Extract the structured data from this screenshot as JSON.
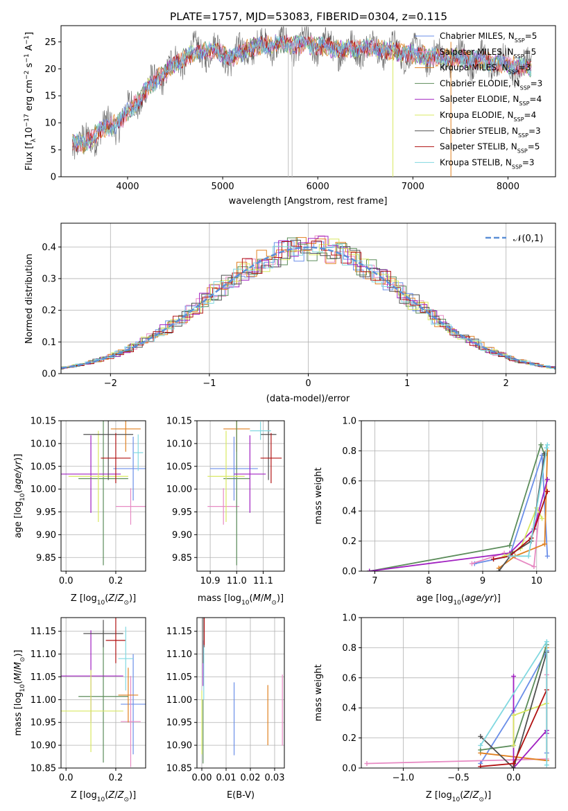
{
  "title": "PLATE=1757, MJD=53083, FIBERID=0304, z=0.115",
  "models": [
    {
      "name": "Chabrier MILES, N",
      "sub": "SSP",
      "suffix": "=5",
      "color": "#6a8ee8"
    },
    {
      "name": "Salpeter MILES, N",
      "sub": "SSP",
      "suffix": "=5",
      "color": "#e78ac3"
    },
    {
      "name": "Kroupa MILES, N",
      "sub": "SSP",
      "suffix": "=3",
      "color": "#e08020"
    },
    {
      "name": "Chabrier ELODIE, N",
      "sub": "SSP",
      "suffix": "=3",
      "color": "#5b8c5a"
    },
    {
      "name": "Salpeter ELODIE, N",
      "sub": "SSP",
      "suffix": "=4",
      "color": "#a020c0"
    },
    {
      "name": "Kroupa ELODIE, N",
      "sub": "SSP",
      "suffix": "=4",
      "color": "#d8e860"
    },
    {
      "name": "Chabrier STELIB, N",
      "sub": "SSP",
      "suffix": "=3",
      "color": "#505050"
    },
    {
      "name": "Salpeter STELIB, N",
      "sub": "SSP",
      "suffix": "=5",
      "color": "#b01010"
    },
    {
      "name": "Kroupa STELIB, N",
      "sub": "SSP",
      "suffix": "=3",
      "color": "#80d8e0"
    }
  ],
  "chart_data": [
    {
      "type": "line",
      "xlabel": "wavelength [Angstrom, rest frame]",
      "ylabel": "Flux [f",
      "xlim": [
        3300,
        8500
      ],
      "ylim": [
        0,
        28
      ],
      "xticks": [
        4000,
        5000,
        6000,
        7000,
        8000
      ],
      "yticks": [
        0,
        5,
        10,
        15,
        20,
        25
      ],
      "continuum": {
        "x": [
          3400,
          3550,
          3700,
          3900,
          4100,
          4300,
          4500,
          4700,
          4900,
          5100,
          5300,
          5500,
          5700,
          5900,
          6100,
          6300,
          6500,
          6700,
          6900,
          7100,
          7300,
          7500,
          7700,
          7900,
          8100,
          8250
        ],
        "y": [
          6.5,
          6,
          8.5,
          10,
          14,
          18,
          21,
          23,
          23.5,
          22,
          24,
          24.5,
          24.5,
          24.5,
          24,
          23.5,
          24,
          23.5,
          23,
          22.5,
          22,
          22,
          21.5,
          21,
          20.5,
          20
        ]
      },
      "grid": false,
      "legend": "top-right"
    },
    {
      "type": "step",
      "xlabel": "(data-model)/error",
      "ylabel": "Normed distribution",
      "xlim": [
        -2.5,
        2.5
      ],
      "ylim": [
        0,
        0.475
      ],
      "xticks": [
        -2,
        -1,
        0,
        1,
        2
      ],
      "yticks": [
        0,
        0.1,
        0.2,
        0.3,
        0.4
      ],
      "reference_label": "𝒩(0,1)",
      "grid": true,
      "legend": "top-right"
    },
    {
      "type": "scatter",
      "xlabel": "Z [log",
      "ylabel": "age  [log",
      "xlim": [
        -0.02,
        0.32
      ],
      "ylim": [
        9.82,
        10.15
      ],
      "xticks": [
        0.0,
        0.2
      ],
      "yticks": [
        9.85,
        9.9,
        9.95,
        10.0,
        10.05,
        10.1,
        10.15
      ],
      "points": [
        {
          "x": 0.27,
          "xerr": 0.08,
          "y": 10.045,
          "yerr": 0.07,
          "model": 0
        },
        {
          "x": 0.26,
          "xerr": 0.06,
          "y": 9.962,
          "yerr": 0.04,
          "model": 1
        },
        {
          "x": 0.24,
          "xerr": 0.06,
          "y": 10.132,
          "yerr": 0.05,
          "model": 2
        },
        {
          "x": 0.15,
          "xerr": 0.1,
          "y": 10.023,
          "yerr": 0.19,
          "model": 3
        },
        {
          "x": 0.1,
          "xerr": 0.12,
          "y": 10.033,
          "yerr": 0.085,
          "model": 4
        },
        {
          "x": 0.13,
          "xerr": 0.12,
          "y": 10.028,
          "yerr": 0.1,
          "model": 5
        },
        {
          "x": 0.17,
          "xerr": 0.1,
          "y": 10.12,
          "yerr": 0.1,
          "model": 6
        },
        {
          "x": 0.2,
          "xerr": 0.06,
          "y": 10.068,
          "yerr": 0.055,
          "model": 7
        },
        {
          "x": 0.29,
          "xerr": 0.02,
          "y": 10.08,
          "yerr": 0.04,
          "model": 8
        }
      ]
    },
    {
      "type": "scatter",
      "xlabel": "mass [log",
      "ylabel": "",
      "xlim": [
        10.85,
        11.18
      ],
      "ylim": [
        9.82,
        10.15
      ],
      "xticks": [
        10.9,
        11.0,
        11.1
      ],
      "yticks": [
        9.85,
        9.9,
        9.95,
        10.0,
        10.05,
        10.1,
        10.15
      ],
      "points": [
        {
          "x": 10.99,
          "xerr": 0.09,
          "y": 10.045,
          "yerr": 0.07,
          "model": 0
        },
        {
          "x": 10.95,
          "xerr": 0.06,
          "y": 9.962,
          "yerr": 0.04,
          "model": 1
        },
        {
          "x": 11.0,
          "xerr": 0.05,
          "y": 10.132,
          "yerr": 0.05,
          "model": 2
        },
        {
          "x": 11.0,
          "xerr": 0.05,
          "y": 10.023,
          "yerr": 0.19,
          "model": 3
        },
        {
          "x": 11.05,
          "xerr": 0.06,
          "y": 10.033,
          "yerr": 0.085,
          "model": 4
        },
        {
          "x": 10.96,
          "xerr": 0.07,
          "y": 10.028,
          "yerr": 0.1,
          "model": 5
        },
        {
          "x": 11.12,
          "xerr": 0.03,
          "y": 10.12,
          "yerr": 0.1,
          "model": 6
        },
        {
          "x": 11.13,
          "xerr": 0.04,
          "y": 10.068,
          "yerr": 0.055,
          "model": 7
        },
        {
          "x": 11.09,
          "xerr": 0.04,
          "y": 10.128,
          "yerr": 0.02,
          "model": 8
        }
      ]
    },
    {
      "type": "line",
      "xlabel": "age  [log",
      "ylabel": "mass weight",
      "xlim": [
        6.75,
        10.35
      ],
      "ylim": [
        0,
        1.0
      ],
      "xticks": [
        7,
        8,
        9,
        10
      ],
      "yticks": [
        0,
        0.2,
        0.4,
        0.6,
        0.8,
        1.0
      ],
      "series": [
        {
          "model": 0,
          "x": [
            8.85,
            9.5,
            10.1,
            10.2
          ],
          "y": [
            0.05,
            0.1,
            0.77,
            0.1
          ]
        },
        {
          "model": 1,
          "x": [
            8.8,
            9.4,
            9.95,
            10.05
          ],
          "y": [
            0.05,
            0.12,
            0.03,
            0.4
          ]
        },
        {
          "model": 2,
          "x": [
            9.3,
            9.6,
            10.15,
            10.2
          ],
          "y": [
            0.02,
            0.1,
            0.18,
            0.8
          ]
        },
        {
          "model": 3,
          "x": [
            6.9,
            9.5,
            10.08,
            10.15
          ],
          "y": [
            0.0,
            0.17,
            0.84,
            0.77
          ]
        },
        {
          "model": 4,
          "x": [
            6.9,
            9.5,
            9.95,
            10.2
          ],
          "y": [
            0.0,
            0.12,
            0.28,
            0.61
          ]
        },
        {
          "model": 5,
          "x": [
            9.4,
            9.7,
            10.0,
            10.1
          ],
          "y": [
            0.1,
            0.15,
            0.42,
            0.35
          ]
        },
        {
          "model": 6,
          "x": [
            9.3,
            9.55,
            9.9,
            10.15
          ],
          "y": [
            0.0,
            0.12,
            0.2,
            0.78
          ]
        },
        {
          "model": 7,
          "x": [
            9.2,
            9.5,
            9.9,
            10.2
          ],
          "y": [
            0.08,
            0.1,
            0.22,
            0.53
          ]
        },
        {
          "model": 8,
          "x": [
            9.5,
            9.85,
            10.2,
            10.18
          ],
          "y": [
            0.1,
            0.1,
            0.84,
            0.82
          ]
        }
      ],
      "grid": true
    },
    {
      "type": "scatter",
      "xlabel": "Z [log",
      "ylabel": "mass [log",
      "xlim": [
        -0.02,
        0.32
      ],
      "ylim": [
        10.85,
        11.18
      ],
      "xticks": [
        0.0,
        0.2
      ],
      "yticks": [
        10.85,
        10.9,
        10.95,
        11.0,
        11.05,
        11.1,
        11.15
      ],
      "points": [
        {
          "x": 0.27,
          "xerr": 0.05,
          "y": 10.99,
          "yerr": 0.11,
          "model": 0
        },
        {
          "x": 0.26,
          "xerr": 0.04,
          "y": 10.952,
          "yerr": 0.1,
          "model": 1
        },
        {
          "x": 0.25,
          "xerr": 0.04,
          "y": 11.01,
          "yerr": 0.06,
          "model": 2
        },
        {
          "x": 0.15,
          "xerr": 0.1,
          "y": 11.007,
          "yerr": 0.145,
          "model": 3
        },
        {
          "x": 0.1,
          "xerr": 0.13,
          "y": 11.052,
          "yerr": 0.1,
          "model": 4
        },
        {
          "x": 0.1,
          "xerr": 0.13,
          "y": 10.975,
          "yerr": 0.09,
          "model": 5
        },
        {
          "x": 0.15,
          "xerr": 0.08,
          "y": 11.145,
          "yerr": 0.03,
          "model": 6
        },
        {
          "x": 0.2,
          "xerr": 0.04,
          "y": 11.13,
          "yerr": 0.05,
          "model": 7
        },
        {
          "x": 0.24,
          "xerr": 0.03,
          "y": 11.09,
          "yerr": 0.07,
          "model": 8
        }
      ]
    },
    {
      "type": "scatter",
      "xlabel": "E(B-V)",
      "ylabel": "",
      "xlim": [
        -0.002,
        0.034
      ],
      "ylim": [
        10.85,
        11.18
      ],
      "xticks": [
        0.0,
        0.01,
        0.02,
        0.03
      ],
      "yticks": [
        10.85,
        10.9,
        10.95,
        11.0,
        11.05,
        11.1,
        11.15
      ],
      "points": [
        {
          "x": 0.0133,
          "xerr": 0,
          "y": 10.958,
          "yerr": 0.08,
          "model": 0
        },
        {
          "x": 0.0332,
          "xerr": 0,
          "y": 10.977,
          "yerr": 0.078,
          "model": 1
        },
        {
          "x": 0.0272,
          "xerr": 0,
          "y": 10.966,
          "yerr": 0.066,
          "model": 2
        },
        {
          "x": 0.0005,
          "xerr": 0,
          "y": 10.93,
          "yerr": 0.07,
          "model": 3
        },
        {
          "x": 0.0005,
          "xerr": 0,
          "y": 11.08,
          "yerr": 0.05,
          "model": 4
        },
        {
          "x": 0.0,
          "xerr": 0,
          "y": 10.95,
          "yerr": 0.07,
          "model": 5
        },
        {
          "x": 0.0005,
          "xerr": 0,
          "y": 11.13,
          "yerr": 0.05,
          "model": 6
        },
        {
          "x": 0.001,
          "xerr": 0,
          "y": 11.15,
          "yerr": 0.035,
          "model": 7
        },
        {
          "x": 0.0008,
          "xerr": 0,
          "y": 11.06,
          "yerr": 0.06,
          "model": 8
        }
      ]
    },
    {
      "type": "line",
      "xlabel": "Z [log",
      "ylabel": "mass weight",
      "xlim": [
        -1.38,
        0.38
      ],
      "ylim": [
        0,
        1.0
      ],
      "xticks": [
        -1.0,
        -0.5,
        0.0
      ],
      "yticks": [
        0,
        0.2,
        0.4,
        0.6,
        0.8,
        1.0
      ],
      "series": [
        {
          "model": 0,
          "x": [
            -0.3,
            0.0,
            0.3,
            0.3
          ],
          "y": [
            0.03,
            0.38,
            0.78,
            0.1
          ]
        },
        {
          "model": 1,
          "x": [
            -1.33,
            0.3,
            0.3
          ],
          "y": [
            0.03,
            0.06,
            0.62
          ]
        },
        {
          "model": 2,
          "x": [
            -0.3,
            0.3,
            0.3
          ],
          "y": [
            0.1,
            0.05,
            0.8
          ]
        },
        {
          "model": 3,
          "x": [
            -0.3,
            0.0,
            0.3
          ],
          "y": [
            0.12,
            0.15,
            0.82
          ]
        },
        {
          "model": 4,
          "x": [
            0.0,
            0.0,
            0.3,
            0.3
          ],
          "y": [
            0.61,
            0.0,
            0.25,
            0.23
          ]
        },
        {
          "model": 5,
          "x": [
            0.0,
            0.0,
            0.3
          ],
          "y": [
            0.15,
            0.35,
            0.43
          ]
        },
        {
          "model": 6,
          "x": [
            -0.3,
            0.0,
            0.3
          ],
          "y": [
            0.21,
            0.0,
            0.77
          ]
        },
        {
          "model": 7,
          "x": [
            -0.3,
            0.0,
            0.3
          ],
          "y": [
            0.01,
            0.03,
            0.52
          ]
        },
        {
          "model": 8,
          "x": [
            -0.3,
            0.3,
            0.3
          ],
          "y": [
            0.15,
            0.84,
            0.02
          ]
        }
      ],
      "grid": true
    }
  ]
}
